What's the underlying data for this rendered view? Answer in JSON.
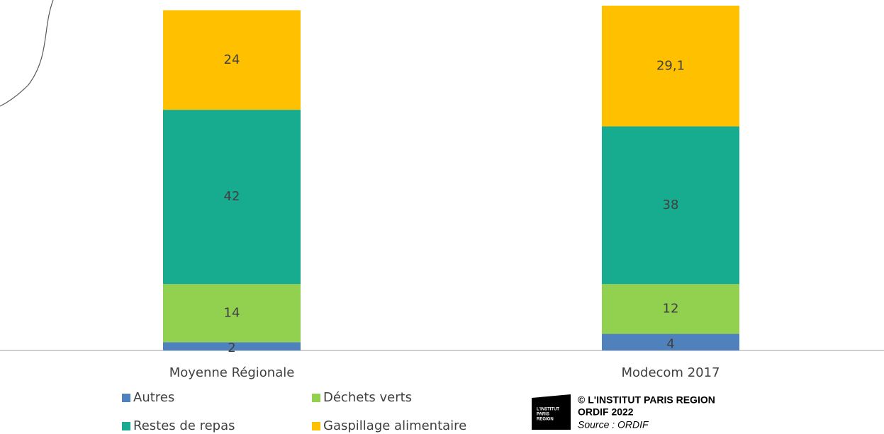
{
  "chart_data": {
    "type": "stacked_bar",
    "categories": [
      "Moyenne Régionale",
      "Modecom 2017"
    ],
    "series": [
      {
        "name": "Autres",
        "color": "#4f81bd",
        "values": [
          2,
          4
        ]
      },
      {
        "name": "Déchets verts",
        "color": "#92d050",
        "values": [
          14,
          12
        ]
      },
      {
        "name": "Restes de repas",
        "color": "#17ab8f",
        "values": [
          42,
          38
        ]
      },
      {
        "name": "Gaspillage alimentaire",
        "color": "#ffc000",
        "values": [
          24,
          29.1
        ],
        "value_labels": [
          "24",
          "29,1"
        ]
      }
    ]
  },
  "footer": {
    "logo": [
      "L'INSTITUT",
      "PARIS",
      "REGION"
    ],
    "copyright": "© L'INSTITUT PARIS REGION",
    "org": "ORDIF 2022",
    "source": "Source : ORDIF"
  }
}
